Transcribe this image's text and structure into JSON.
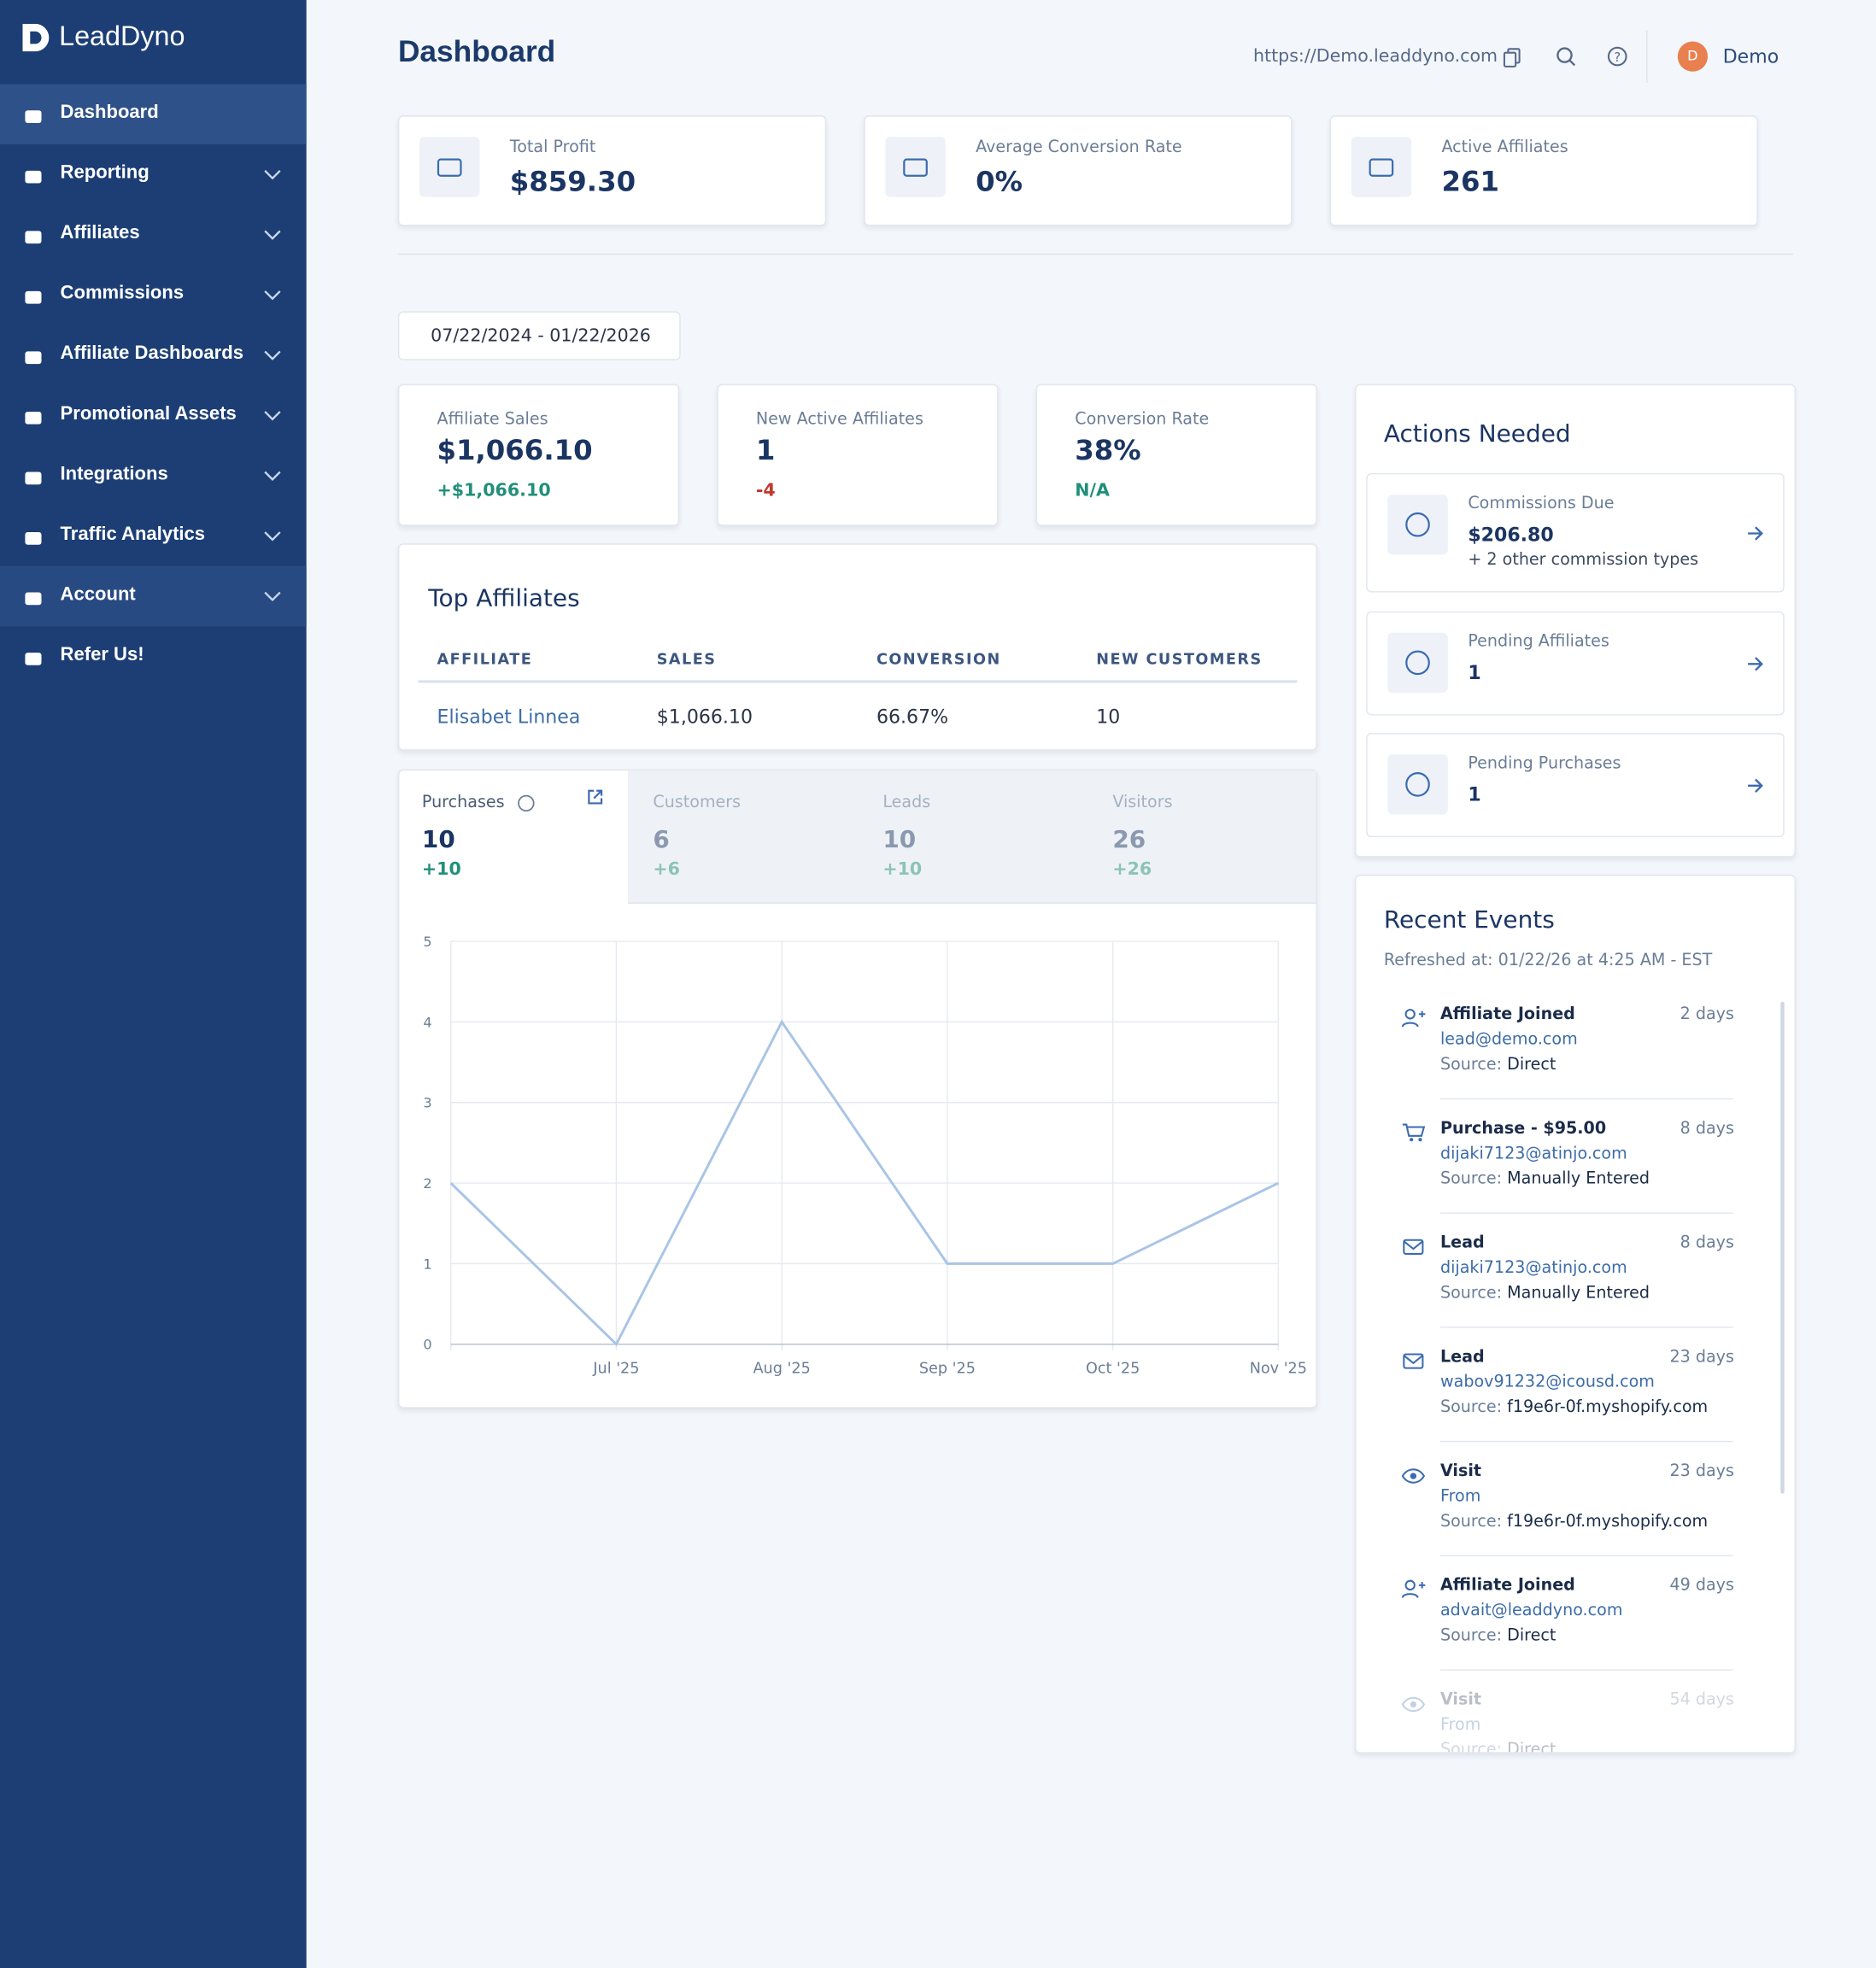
{
  "sidebar": {
    "brand": "LeadDyno",
    "nav": [
      "Dashboard",
      "Reporting",
      "Affiliates",
      "Commissions",
      "Affiliate Dashboards",
      "Promotional Assets",
      "Integrations",
      "Traffic Analytics",
      "Account",
      "Refer Us!"
    ]
  },
  "header": {
    "title": "Dashboard",
    "url": "https://Demo.leaddyno.com",
    "avatar": "D",
    "user": "Demo"
  },
  "kpis": [
    {
      "label": "Total Profit",
      "value": "$859.30"
    },
    {
      "label": "Average Conversion Rate",
      "value": "0%"
    },
    {
      "label": "Active Affiliates",
      "value": "261"
    }
  ],
  "date_range": "07/22/2024 - 01/22/2026",
  "stats": [
    {
      "label": "Affiliate Sales",
      "value": "$1,066.10",
      "change": "+$1,066.10"
    },
    {
      "label": "New Active Affiliates",
      "value": "1",
      "change": "-4"
    },
    {
      "label": "Conversion Rate",
      "value": "38%",
      "change": "N/A"
    }
  ],
  "top_affiliates": {
    "title": "Top Affiliates",
    "columns": [
      "AFFILIATE",
      "SALES",
      "CONVERSION",
      "NEW CUSTOMERS"
    ],
    "rows": [
      [
        "Elisabet Linnea",
        "$1,066.10",
        "66.67%",
        "10"
      ]
    ]
  },
  "tabs": [
    {
      "label": "Purchases",
      "value": "10",
      "change": "+10"
    },
    {
      "label": "Customers",
      "value": "6",
      "change": "+6"
    },
    {
      "label": "Leads",
      "value": "10",
      "change": "+10"
    },
    {
      "label": "Visitors",
      "value": "26",
      "change": "+26"
    }
  ],
  "chart": {
    "type": "line",
    "categories": [
      null,
      "Jul '25",
      "Aug '25",
      "Sep '25",
      "Oct '25",
      "Nov '25"
    ],
    "values": [
      2,
      0,
      4,
      1,
      1,
      2
    ],
    "color": "#a9c4e6",
    "ylim": [
      0,
      5
    ],
    "yticks": [
      0,
      1,
      2,
      3,
      4,
      5
    ],
    "grid": true
  },
  "actions": {
    "title": "Actions Needed",
    "items": [
      {
        "label": "Commissions Due",
        "value": "$206.80",
        "note": "+ 2 other commission types"
      },
      {
        "label": "Pending Affiliates",
        "value": "1"
      },
      {
        "label": "Pending Purchases",
        "value": "1"
      }
    ]
  },
  "events": {
    "title": "Recent Events",
    "refreshed": "Refreshed at: 01/22/26 at 4:25 AM - EST",
    "items": [
      {
        "icon": "user",
        "title": "Affiliate Joined",
        "time": "2 days",
        "detail": "lead@demo.com",
        "source_label": "Source:",
        "source": "Direct"
      },
      {
        "icon": "cart",
        "title": "Purchase - $95.00",
        "time": "8 days",
        "detail": "dijaki7123@atinjo.com",
        "source_label": "Source:",
        "source": "Manually Entered"
      },
      {
        "icon": "mail",
        "title": "Lead",
        "time": "8 days",
        "detail": "dijaki7123@atinjo.com",
        "source_label": "Source:",
        "source": "Manually Entered"
      },
      {
        "icon": "mail",
        "title": "Lead",
        "time": "23 days",
        "detail": "wabov91232@icousd.com",
        "source_label": "Source:",
        "source": "f19e6r-0f.myshopify.com"
      },
      {
        "icon": "eye",
        "title": "Visit",
        "time": "23 days",
        "detail": "From",
        "source_label": "Source:",
        "source": "f19e6r-0f.myshopify.com"
      },
      {
        "icon": "user",
        "title": "Affiliate Joined",
        "time": "49 days",
        "detail": "advait@leaddyno.com",
        "source_label": "Source:",
        "source": "Direct"
      },
      {
        "icon": "eye",
        "title": "Visit",
        "time": "54 days",
        "detail": "From",
        "source_label": "Source:",
        "source": "Direct"
      }
    ]
  }
}
